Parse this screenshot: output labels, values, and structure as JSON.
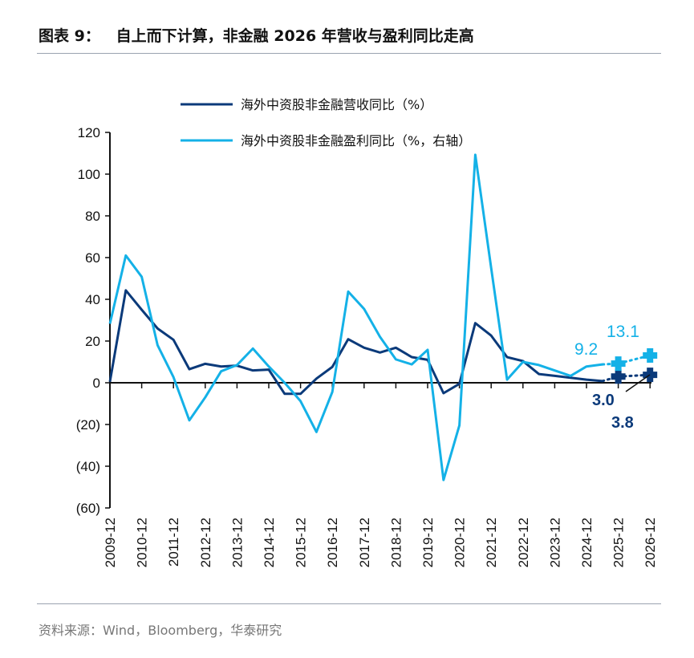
{
  "title": "图表 9：   自上而下计算，非金融 2026 年营收与盈利同比走高",
  "source": "资料来源：Wind，Bloomberg，华泰研究",
  "colors": {
    "revenue": "#0b3a7a",
    "profit": "#14b1e7"
  },
  "chart_data": {
    "type": "line",
    "title": "",
    "xlabel": "",
    "ylabel": "",
    "ylim": [
      -60,
      120
    ],
    "yticks": [
      120,
      100,
      80,
      60,
      40,
      20,
      0,
      -20,
      -40,
      -60
    ],
    "ytick_labels": [
      "120",
      "100",
      "80",
      "60",
      "40",
      "20",
      "0",
      "(20)",
      "(40)",
      "(60)"
    ],
    "xtick_labels": [
      "2009-12",
      "2010-12",
      "2011-12",
      "2012-12",
      "2013-12",
      "2014-12",
      "2015-12",
      "2016-12",
      "2017-12",
      "2018-12",
      "2019-12",
      "2020-12",
      "2021-12",
      "2022-12",
      "2023-12",
      "2024-12",
      "2025-12",
      "2026-12"
    ],
    "grid": false,
    "legend_position": "top-left",
    "x": [
      "2009-12",
      "2010-06",
      "2010-12",
      "2011-06",
      "2011-12",
      "2012-06",
      "2012-12",
      "2013-06",
      "2013-12",
      "2014-06",
      "2014-12",
      "2015-06",
      "2015-12",
      "2016-06",
      "2016-12",
      "2017-06",
      "2017-12",
      "2018-06",
      "2018-12",
      "2019-06",
      "2019-12",
      "2020-06",
      "2020-12",
      "2021-06",
      "2021-12",
      "2022-06",
      "2022-12",
      "2023-06",
      "2023-12",
      "2024-06",
      "2024-12",
      "2025-06"
    ],
    "series": [
      {
        "name": "海外中资股非金融营收同比（%）",
        "color": "#0b3a7a",
        "values": [
          0.5,
          44.3,
          35,
          26,
          20.6,
          6.5,
          9.1,
          7.8,
          8.2,
          5.9,
          6.3,
          -5.3,
          -5.3,
          2,
          7.6,
          20.9,
          16.8,
          14.5,
          16.8,
          12.3,
          11,
          -5,
          -0.5,
          28.6,
          22.6,
          12.3,
          10.4,
          4.2,
          3.3,
          2.4,
          1.5,
          0.8
        ],
        "forecast": {
          "x": [
            "2025-12",
            "2026-12"
          ],
          "values": [
            3.0,
            3.8
          ],
          "labels": [
            "3.0",
            "3.8"
          ]
        }
      },
      {
        "name": "海外中资股非金融盈利同比（%，右轴）",
        "color": "#14b1e7",
        "values": [
          28.3,
          61,
          50.8,
          18,
          2.7,
          -18,
          -7,
          5.5,
          8.5,
          16.4,
          7.8,
          0,
          -8.8,
          -23.6,
          -4.4,
          43.7,
          35.4,
          22,
          11.2,
          8.8,
          15.8,
          -46.6,
          -20.4,
          109.3,
          55,
          1.5,
          10,
          8.5,
          5.9,
          3.3,
          7.8,
          8.8
        ],
        "forecast": {
          "x": [
            "2025-12",
            "2026-12"
          ],
          "values": [
            9.2,
            13.1
          ],
          "labels": [
            "9.2",
            "13.1"
          ]
        }
      }
    ]
  }
}
